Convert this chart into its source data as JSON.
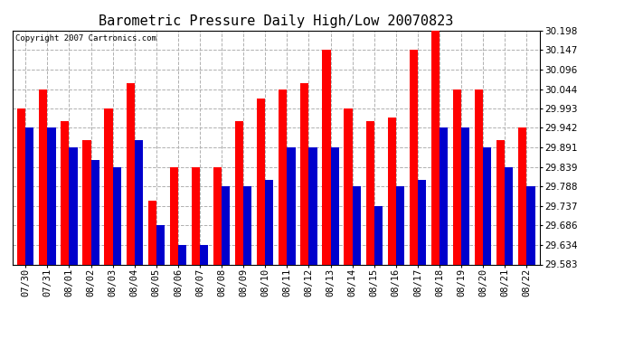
{
  "title": "Barometric Pressure Daily High/Low 20070823",
  "copyright": "Copyright 2007 Cartronics.com",
  "categories": [
    "07/30",
    "07/31",
    "08/01",
    "08/02",
    "08/03",
    "08/04",
    "08/05",
    "08/06",
    "08/07",
    "08/08",
    "08/09",
    "08/10",
    "08/11",
    "08/12",
    "08/13",
    "08/14",
    "08/15",
    "08/16",
    "08/17",
    "08/18",
    "08/19",
    "08/20",
    "08/21",
    "08/22"
  ],
  "highs": [
    29.993,
    30.044,
    29.96,
    29.91,
    29.993,
    30.06,
    29.75,
    29.839,
    29.839,
    29.839,
    29.96,
    30.02,
    30.044,
    30.06,
    30.147,
    29.993,
    29.96,
    29.97,
    30.147,
    30.198,
    30.044,
    30.044,
    29.91,
    29.942
  ],
  "lows": [
    29.942,
    29.942,
    29.891,
    29.857,
    29.839,
    29.91,
    29.686,
    29.634,
    29.634,
    29.788,
    29.788,
    29.805,
    29.891,
    29.891,
    29.891,
    29.788,
    29.737,
    29.788,
    29.806,
    29.942,
    29.942,
    29.891,
    29.839,
    29.788
  ],
  "high_color": "#ff0000",
  "low_color": "#0000cc",
  "bg_color": "#ffffff",
  "plot_bg_color": "#ffffff",
  "grid_color": "#b0b0b0",
  "title_fontsize": 11,
  "tick_fontsize": 7.5,
  "copyright_fontsize": 6.5,
  "ylim_min": 29.583,
  "ylim_max": 30.198,
  "yticks": [
    29.583,
    29.634,
    29.686,
    29.737,
    29.788,
    29.839,
    29.891,
    29.942,
    29.993,
    30.044,
    30.096,
    30.147,
    30.198
  ]
}
